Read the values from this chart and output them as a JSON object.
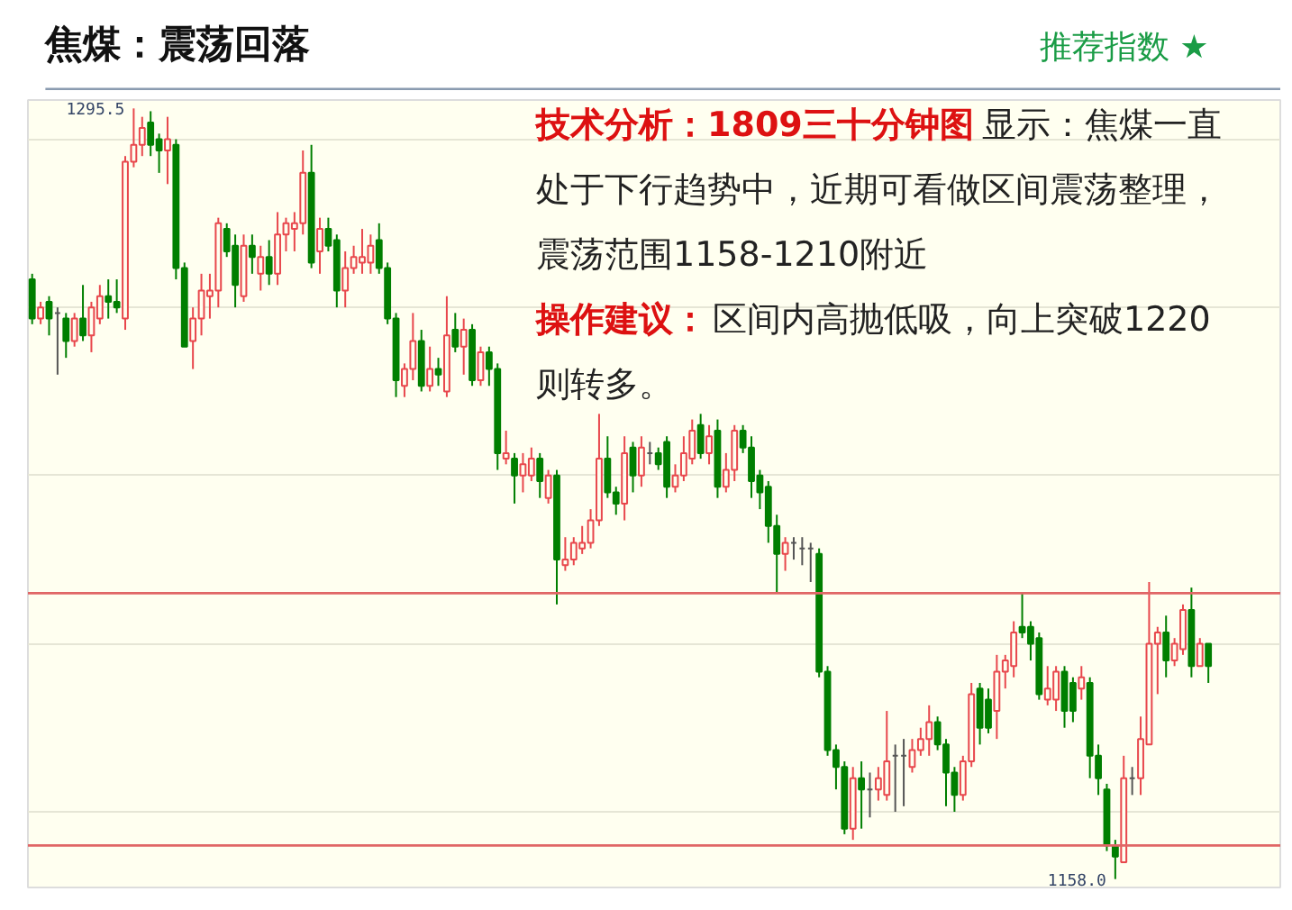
{
  "chart_data": {
    "type": "candlestick",
    "title": "焦煤：震荡回落",
    "subtitle": "推荐指数 ★",
    "categories": [
      null,
      null,
      null,
      null,
      null,
      null,
      null,
      null,
      null,
      null,
      null,
      null,
      null,
      null,
      null,
      null,
      null,
      null,
      null,
      null,
      null,
      null,
      null,
      null,
      null,
      null,
      null,
      null,
      null,
      null,
      null,
      null,
      null,
      null,
      null,
      null,
      null,
      null,
      null,
      null,
      null,
      null,
      null,
      null,
      null,
      null,
      null,
      null,
      null,
      null,
      null,
      null,
      null,
      null,
      null,
      null,
      null,
      null,
      null,
      null,
      null,
      null,
      null,
      null,
      null,
      null,
      null,
      null,
      null,
      null,
      null,
      null,
      null,
      null,
      null,
      null,
      null,
      null,
      null,
      null,
      null,
      null,
      null,
      null,
      null,
      null,
      null,
      null,
      null,
      null,
      null,
      null,
      null,
      null,
      null,
      null,
      null,
      null,
      null,
      null,
      null,
      null,
      null,
      null,
      null,
      null,
      null,
      null,
      null,
      null,
      null,
      null,
      null,
      null,
      null,
      null,
      null,
      null,
      null,
      null,
      null,
      null,
      null,
      null,
      null,
      null,
      null,
      null,
      null,
      null,
      null,
      null,
      null,
      null,
      null,
      null,
      null,
      null,
      null,
      null
    ],
    "ohlc": [
      [
        1265,
        1266,
        1257,
        1258
      ],
      [
        1258,
        1261,
        1257,
        1260
      ],
      [
        1261,
        1262,
        1255,
        1258
      ],
      [
        1259,
        1260,
        1248,
        1259
      ],
      [
        1258,
        1259,
        1251,
        1254
      ],
      [
        1254,
        1259,
        1253,
        1258
      ],
      [
        1258,
        1264,
        1254,
        1255
      ],
      [
        1255,
        1261,
        1252,
        1260
      ],
      [
        1258,
        1264,
        1257,
        1262
      ],
      [
        1262,
        1265,
        1258,
        1261
      ],
      [
        1261,
        1265,
        1259,
        1260
      ],
      [
        1258,
        1287,
        1256,
        1286
      ],
      [
        1286,
        1295.5,
        1285,
        1289
      ],
      [
        1289,
        1294,
        1287,
        1292
      ],
      [
        1293,
        1295,
        1287,
        1289
      ],
      [
        1290,
        1291,
        1284,
        1288
      ],
      [
        1288,
        1294,
        1282,
        1290
      ],
      [
        1289,
        1290,
        1265,
        1267
      ],
      [
        1267,
        1268,
        1253,
        1253
      ],
      [
        1254,
        1260,
        1249,
        1258
      ],
      [
        1258,
        1266,
        1255,
        1263
      ],
      [
        1262,
        1266,
        1258,
        1263
      ],
      [
        1263,
        1276,
        1260,
        1275
      ],
      [
        1274,
        1275,
        1269,
        1270
      ],
      [
        1271,
        1273,
        1260,
        1264
      ],
      [
        1262,
        1273,
        1261,
        1271
      ],
      [
        1271,
        1273,
        1266,
        1269
      ],
      [
        1266,
        1271,
        1263,
        1269
      ],
      [
        1269,
        1272,
        1264,
        1266
      ],
      [
        1266,
        1277,
        1264,
        1273
      ],
      [
        1273,
        1276,
        1270,
        1275
      ],
      [
        1274,
        1277,
        1270,
        1275
      ],
      [
        1275,
        1288,
        1273,
        1284
      ],
      [
        1284,
        1289,
        1267,
        1268
      ],
      [
        1270,
        1276,
        1266,
        1274
      ],
      [
        1274,
        1276,
        1270,
        1271
      ],
      [
        1272,
        1273,
        1260,
        1263
      ],
      [
        1263,
        1270,
        1260,
        1267
      ],
      [
        1267,
        1271,
        1266,
        1269
      ],
      [
        1268,
        1274,
        1266,
        1269
      ],
      [
        1268,
        1273,
        1266,
        1271
      ],
      [
        1272,
        1275,
        1266,
        1267
      ],
      [
        1267,
        1268,
        1257,
        1258
      ],
      [
        1258,
        1259,
        1244,
        1247
      ],
      [
        1246,
        1250,
        1244,
        1249
      ],
      [
        1249,
        1259,
        1247,
        1254
      ],
      [
        1254,
        1256,
        1245,
        1246
      ],
      [
        1246,
        1253,
        1245,
        1249
      ],
      [
        1249,
        1251,
        1246,
        1248
      ],
      [
        1245,
        1262,
        1244,
        1255
      ],
      [
        1256,
        1259,
        1252,
        1253
      ],
      [
        1253,
        1258,
        1248,
        1256
      ],
      [
        1256,
        1257,
        1246,
        1247
      ],
      [
        1247,
        1253,
        1246,
        1252
      ],
      [
        1252,
        1253,
        1246,
        1249
      ],
      [
        1249,
        1250,
        1231,
        1234
      ],
      [
        1233,
        1238,
        1232,
        1234
      ],
      [
        1233,
        1234,
        1225,
        1230
      ],
      [
        1230,
        1234,
        1227,
        1232
      ],
      [
        1230,
        1235,
        1229,
        1233
      ],
      [
        1233,
        1234,
        1226,
        1229
      ],
      [
        1226,
        1231,
        1225,
        1230
      ],
      [
        1230,
        1231,
        1207,
        1215
      ],
      [
        1214,
        1219,
        1213,
        1215
      ],
      [
        1215,
        1219,
        1214,
        1218
      ],
      [
        1217,
        1221,
        1216,
        1218
      ],
      [
        1218,
        1224,
        1217,
        1222
      ],
      [
        1222,
        1241,
        1221,
        1233
      ],
      [
        1233,
        1237,
        1226,
        1227
      ],
      [
        1227,
        1228,
        1223,
        1225
      ],
      [
        1225,
        1237,
        1222,
        1234
      ],
      [
        1235,
        1236,
        1227,
        1230
      ],
      [
        1230,
        1237,
        1228,
        1235
      ],
      [
        1234,
        1236,
        1232,
        1234
      ],
      [
        1234,
        1235,
        1231,
        1232
      ],
      [
        1236,
        1237,
        1226,
        1228
      ],
      [
        1228,
        1232,
        1227,
        1230
      ],
      [
        1230,
        1237,
        1229,
        1234
      ],
      [
        1233,
        1240,
        1232,
        1238
      ],
      [
        1239,
        1241,
        1233,
        1234
      ],
      [
        1234,
        1239,
        1232,
        1237
      ],
      [
        1238,
        1240,
        1226,
        1228
      ],
      [
        1228,
        1234,
        1227,
        1231
      ],
      [
        1231,
        1239,
        1229,
        1238
      ],
      [
        1238,
        1239,
        1234,
        1235
      ],
      [
        1235,
        1237,
        1226,
        1229
      ],
      [
        1230,
        1231,
        1224,
        1227
      ],
      [
        1228,
        1229,
        1218,
        1221
      ],
      [
        1221,
        1223,
        1209,
        1216
      ],
      [
        1216,
        1219,
        1213,
        1218
      ],
      [
        1218,
        1219,
        1215,
        1218
      ],
      [
        1217,
        1219,
        1214,
        1217
      ],
      [
        1217,
        1218,
        1211,
        1217
      ],
      [
        1216,
        1217,
        1194,
        1195
      ],
      [
        1195,
        1196,
        1180,
        1181
      ],
      [
        1181,
        1182,
        1174,
        1178
      ],
      [
        1178,
        1179,
        1166,
        1167
      ],
      [
        1167,
        1178,
        1165,
        1176
      ],
      [
        1176,
        1179,
        1167,
        1174
      ],
      [
        1174,
        1177,
        1169,
        1174
      ],
      [
        1174,
        1178,
        1172,
        1176
      ],
      [
        1173,
        1188,
        1172,
        1179
      ],
      [
        1180,
        1182,
        1170,
        1180
      ],
      [
        1180,
        1183,
        1171,
        1180
      ],
      [
        1178,
        1183,
        1177,
        1181
      ],
      [
        1181,
        1185,
        1180,
        1183
      ],
      [
        1183,
        1189,
        1180,
        1186
      ],
      [
        1186,
        1187,
        1181,
        1182
      ],
      [
        1182,
        1183,
        1171,
        1177
      ],
      [
        1177,
        1178,
        1170,
        1173
      ],
      [
        1173,
        1180,
        1172,
        1179
      ],
      [
        1179,
        1193,
        1178,
        1191
      ],
      [
        1192,
        1193,
        1182,
        1185
      ],
      [
        1190,
        1192,
        1184,
        1185
      ],
      [
        1188,
        1198,
        1183,
        1195
      ],
      [
        1195,
        1198,
        1192,
        1197
      ],
      [
        1196,
        1204,
        1194,
        1202
      ],
      [
        1203,
        1209,
        1201,
        1202
      ],
      [
        1203,
        1204,
        1197,
        1200
      ],
      [
        1201,
        1202,
        1190,
        1191
      ],
      [
        1190,
        1196,
        1189,
        1192
      ],
      [
        1190,
        1196,
        1188,
        1195
      ],
      [
        1195,
        1196,
        1185,
        1188
      ],
      [
        1193,
        1194,
        1186,
        1188
      ],
      [
        1192,
        1196,
        1190,
        1194
      ],
      [
        1193,
        1194,
        1176,
        1180
      ],
      [
        1180,
        1182,
        1173,
        1176
      ],
      [
        1174,
        1175,
        1163,
        1164
      ],
      [
        1164,
        1165,
        1158.0,
        1162
      ],
      [
        1161,
        1180,
        1161,
        1176
      ],
      [
        1176,
        1178,
        1173,
        1176
      ],
      [
        1176,
        1187,
        1173,
        1183
      ],
      [
        1182,
        1211,
        1182,
        1200
      ],
      [
        1200,
        1203,
        1191,
        1202
      ],
      [
        1202,
        1205,
        1194,
        1197
      ],
      [
        1197,
        1201,
        1196,
        1200
      ],
      [
        1199,
        1207,
        1198,
        1206
      ],
      [
        1206,
        1210,
        1194,
        1196
      ],
      [
        1196,
        1201,
        1196,
        1200
      ],
      [
        1200,
        1200,
        1193,
        1196
      ]
    ],
    "colors": [
      "#007f00",
      "#e8474c",
      "#007f00",
      "#555555",
      "#007f00",
      "#e8474c",
      "#007f00",
      "#e8474c",
      "#e8474c",
      "#007f00",
      "#007f00",
      "#e8474c",
      "#e8474c",
      "#e8474c",
      "#007f00",
      "#007f00",
      "#e8474c",
      "#007f00",
      "#007f00",
      "#e8474c",
      "#e8474c",
      "#e8474c",
      "#e8474c",
      "#007f00",
      "#007f00",
      "#e8474c",
      "#007f00",
      "#e8474c",
      "#007f00",
      "#e8474c",
      "#e8474c",
      "#e8474c",
      "#e8474c",
      "#007f00",
      "#e8474c",
      "#007f00",
      "#007f00",
      "#e8474c",
      "#e8474c",
      "#e8474c",
      "#e8474c",
      "#007f00",
      "#007f00",
      "#007f00",
      "#e8474c",
      "#e8474c",
      "#007f00",
      "#e8474c",
      "#007f00",
      "#e8474c",
      "#007f00",
      "#e8474c",
      "#007f00",
      "#e8474c",
      "#007f00",
      "#007f00",
      "#e8474c",
      "#007f00",
      "#e8474c",
      "#e8474c",
      "#007f00",
      "#e8474c",
      "#007f00",
      "#e8474c",
      "#e8474c",
      "#e8474c",
      "#e8474c",
      "#e8474c",
      "#007f00",
      "#007f00",
      "#e8474c",
      "#007f00",
      "#e8474c",
      "#555555",
      "#007f00",
      "#007f00",
      "#e8474c",
      "#e8474c",
      "#e8474c",
      "#007f00",
      "#e8474c",
      "#007f00",
      "#e8474c",
      "#e8474c",
      "#007f00",
      "#007f00",
      "#007f00",
      "#007f00",
      "#007f00",
      "#e8474c",
      "#555555",
      "#555555",
      "#555555",
      "#007f00",
      "#007f00",
      "#007f00",
      "#007f00",
      "#e8474c",
      "#007f00",
      "#555555",
      "#e8474c",
      "#e8474c",
      "#555555",
      "#555555",
      "#e8474c",
      "#e8474c",
      "#e8474c",
      "#007f00",
      "#007f00",
      "#007f00",
      "#e8474c",
      "#e8474c",
      "#007f00",
      "#007f00",
      "#e8474c",
      "#e8474c",
      "#e8474c",
      "#007f00",
      "#007f00",
      "#007f00",
      "#e8474c",
      "#e8474c",
      "#007f00",
      "#007f00",
      "#e8474c",
      "#007f00",
      "#007f00",
      "#007f00",
      "#007f00",
      "#e8474c",
      "#555555",
      "#e8474c",
      "#e8474c",
      "#e8474c",
      "#007f00",
      "#e8474c",
      "#e8474c",
      "#007f00",
      "#e8474c",
      "#007f00"
    ],
    "ylim": [
      1156.5,
      1297
    ],
    "yticks": [
      {
        "value": 1170,
        "label": null
      },
      {
        "value": 1200,
        "label": null
      },
      {
        "value": 1230,
        "label": null
      },
      {
        "value": 1260,
        "label": null
      },
      {
        "value": 1290,
        "label": null
      }
    ],
    "grid": "y",
    "tick_labels": false,
    "ref_lines": [
      {
        "axis": "y",
        "value": 1209,
        "color": "#e06666"
      },
      {
        "axis": "y",
        "value": 1164,
        "color": "#e06666"
      }
    ],
    "annotations": [
      "1295.5",
      "1158.0",
      "技术分析：1809三十分钟图",
      "显示：焦煤一直",
      "处于下行趋势中，近期可看做区间震荡整理，",
      "震荡范围1158-1210附近",
      "操作建议：",
      "区间内高抛低吸，向上突破1220",
      "则转多。"
    ]
  }
}
